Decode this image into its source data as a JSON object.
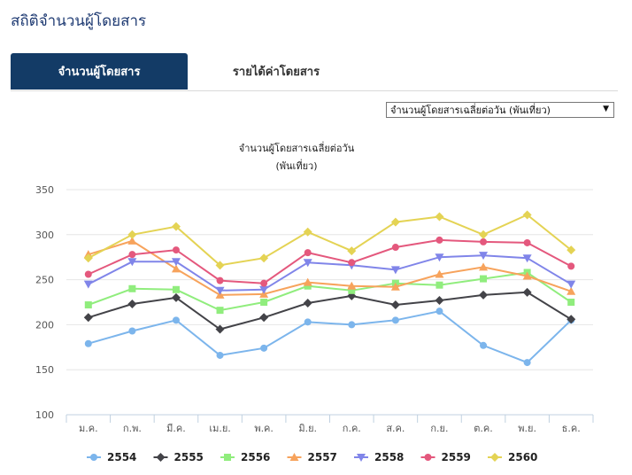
{
  "page": {
    "title": "สถิติจำนวนผู้โดยสาร"
  },
  "tabs": [
    {
      "label": "จำนวนผู้โดยสาร",
      "active": true
    },
    {
      "label": "รายได้ค่าโดยสาร",
      "active": false
    }
  ],
  "selector": {
    "selected": "จำนวนผู้โดยสารเฉลี่ยต่อวัน (พันเที่ยว)"
  },
  "chart_data": {
    "type": "line",
    "title": "จำนวนผู้โดยสารเฉลี่ยต่อวัน",
    "subtitle": "(พันเที่ยว)",
    "xlabel": "",
    "ylabel": "",
    "categories": [
      "ม.ค.",
      "ก.พ.",
      "มี.ค.",
      "เม.ย.",
      "พ.ค.",
      "มิ.ย.",
      "ก.ค.",
      "ส.ค.",
      "ก.ย.",
      "ต.ค.",
      "พ.ย.",
      "ธ.ค."
    ],
    "ylim": [
      100,
      350
    ],
    "yticks": [
      100,
      150,
      200,
      250,
      300,
      350
    ],
    "grid": true,
    "legend": "bottom",
    "series": [
      {
        "name": "2554",
        "color": "#7cb5ec",
        "marker": "circle",
        "values": [
          179,
          193,
          205,
          166,
          174,
          203,
          200,
          205,
          215,
          177,
          158,
          205
        ]
      },
      {
        "name": "2555",
        "color": "#434348",
        "marker": "diamond",
        "values": [
          208,
          223,
          230,
          195,
          208,
          224,
          232,
          222,
          227,
          233,
          236,
          206
        ]
      },
      {
        "name": "2556",
        "color": "#90ed7d",
        "marker": "square",
        "values": [
          222,
          240,
          239,
          216,
          225,
          243,
          238,
          246,
          244,
          251,
          258,
          225
        ]
      },
      {
        "name": "2557",
        "color": "#f7a35c",
        "marker": "triangle",
        "values": [
          278,
          293,
          262,
          233,
          234,
          247,
          243,
          242,
          256,
          264,
          254,
          237
        ]
      },
      {
        "name": "2558",
        "color": "#8085e9",
        "marker": "triangle-down",
        "values": [
          245,
          270,
          270,
          238,
          239,
          269,
          266,
          261,
          275,
          277,
          274,
          245
        ]
      },
      {
        "name": "2559",
        "color": "#e4587d",
        "marker": "circle",
        "values": [
          256,
          278,
          283,
          249,
          246,
          280,
          269,
          286,
          294,
          292,
          291,
          265
        ]
      },
      {
        "name": "2560",
        "color": "#e4d354",
        "marker": "diamond",
        "values": [
          274,
          300,
          309,
          266,
          274,
          303,
          282,
          314,
          320,
          300,
          322,
          283
        ]
      }
    ]
  }
}
